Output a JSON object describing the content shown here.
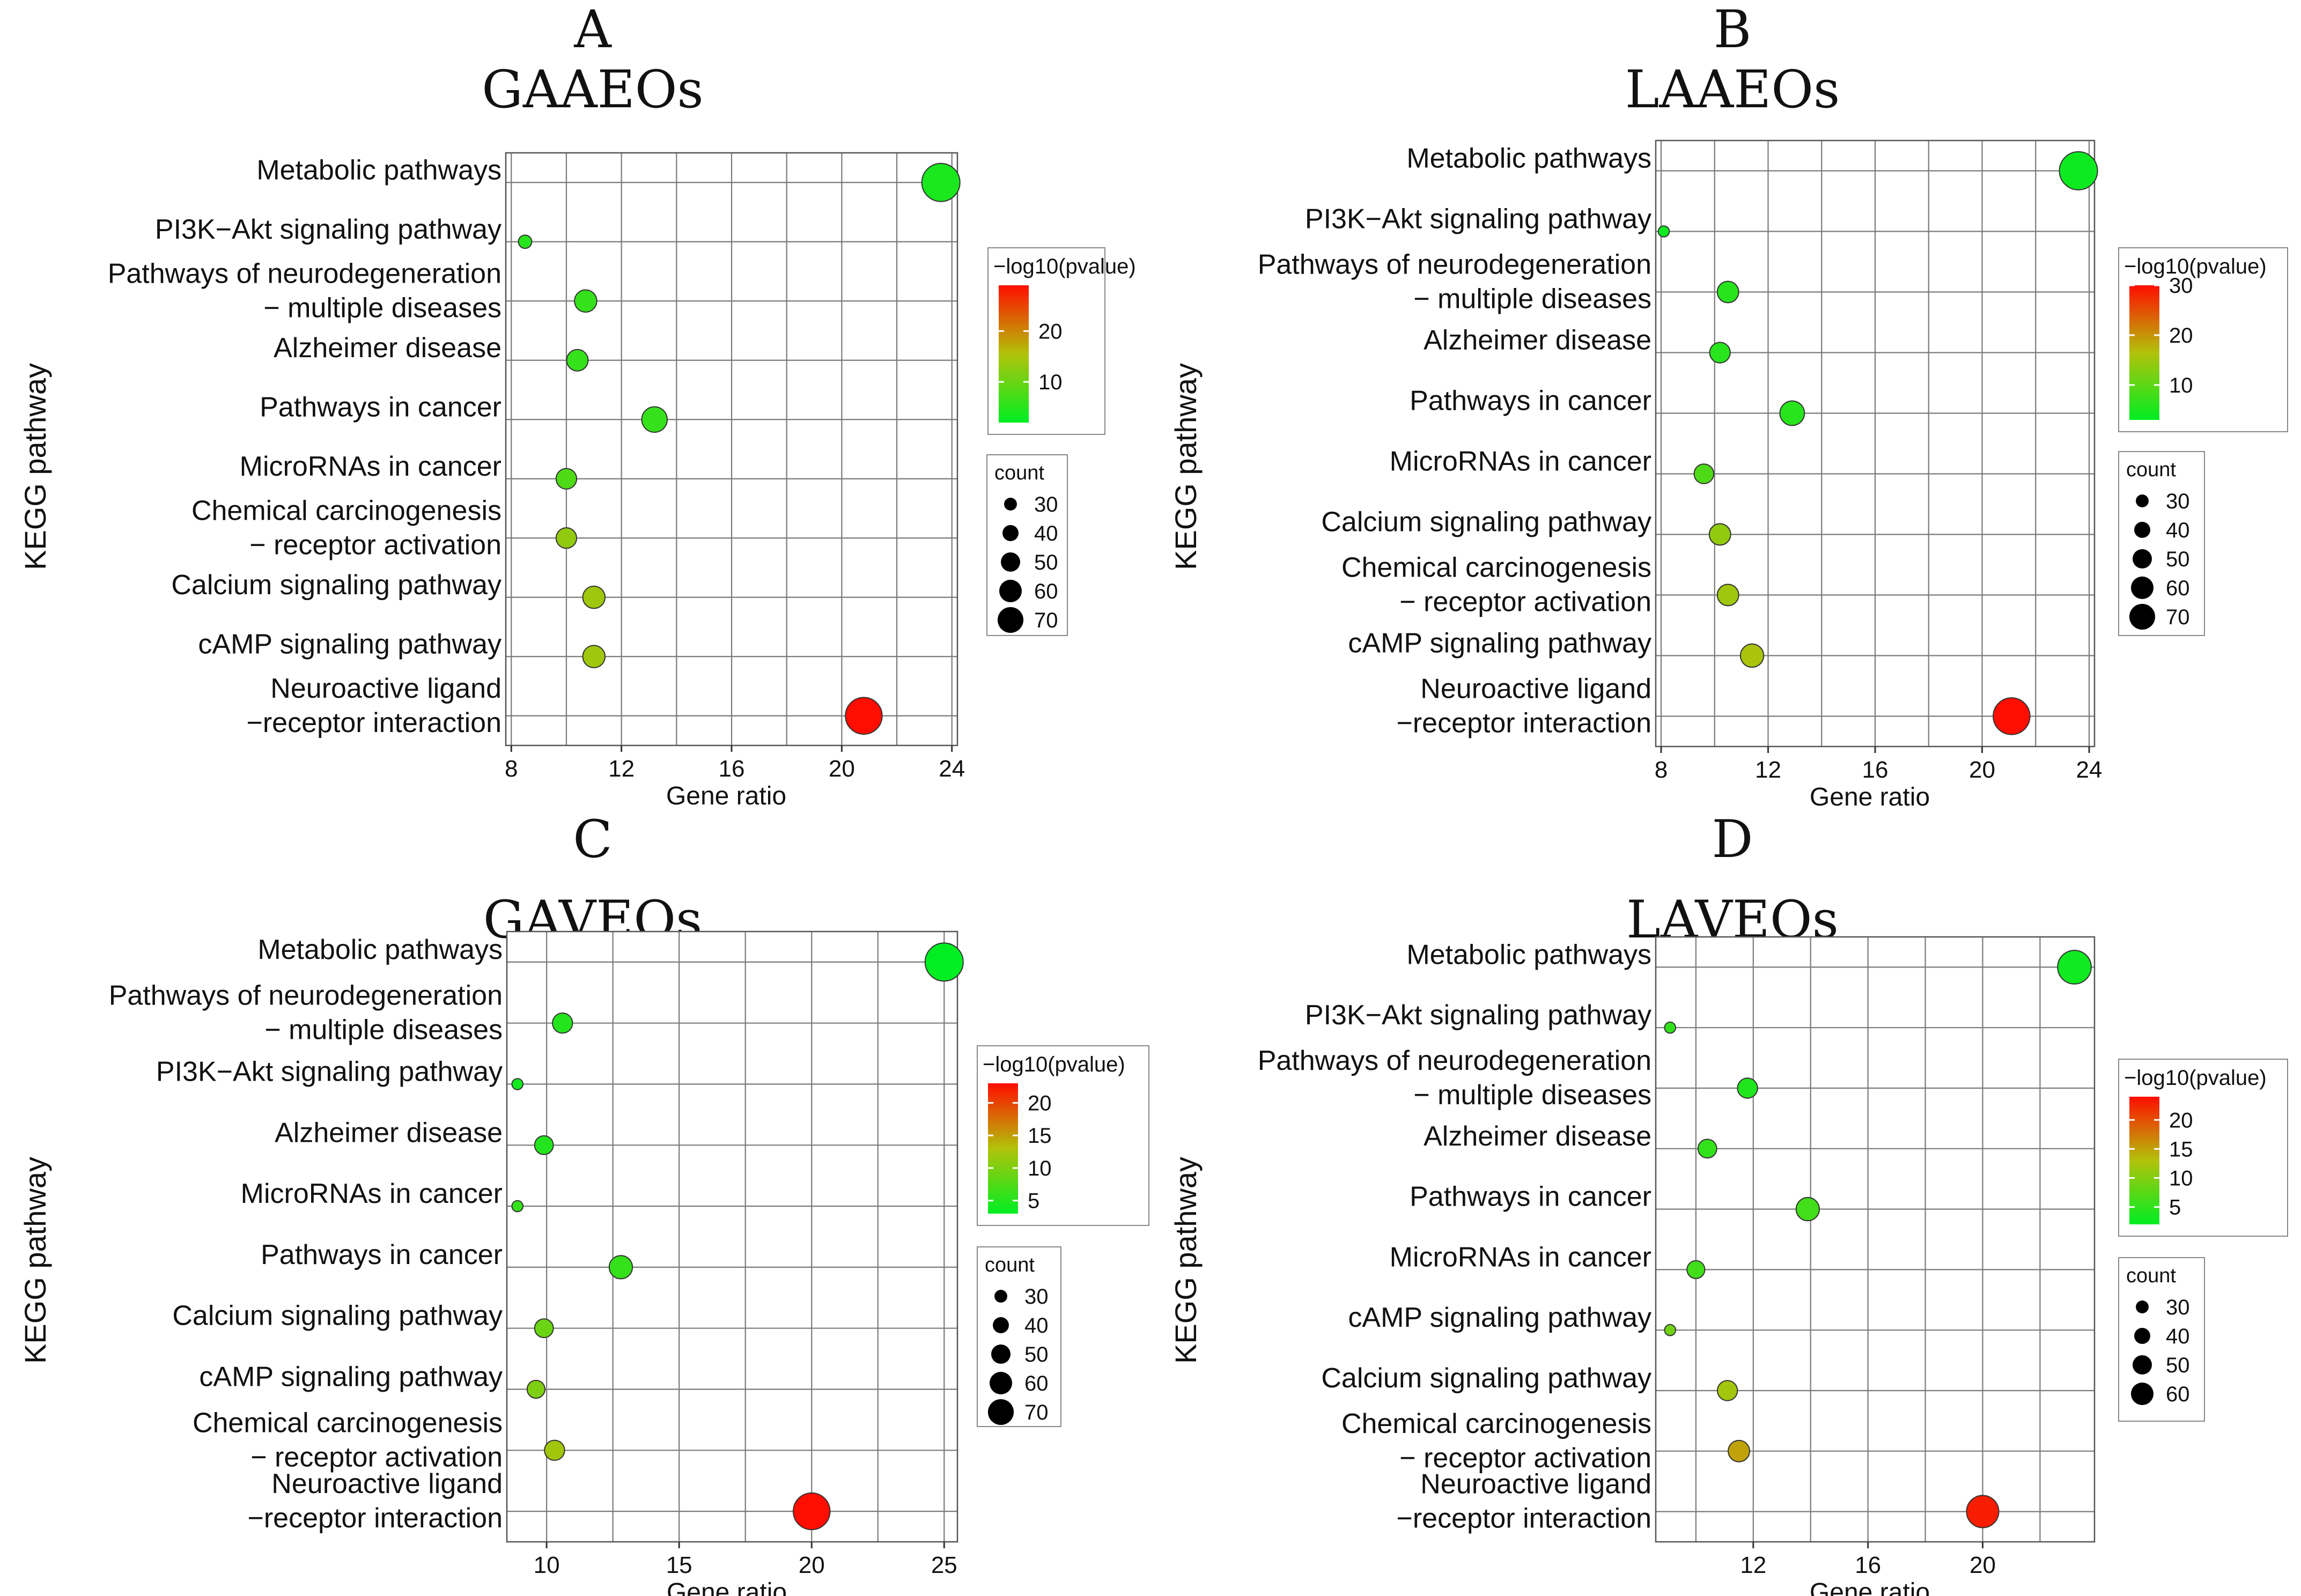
{
  "chart_data": [
    {
      "type": "scatter",
      "panel_label": "A",
      "title": "GAAEOs",
      "xlabel": "Gene ratio",
      "ylabel": "KEGG pathway",
      "xlim": [
        7.8,
        24.2
      ],
      "xticks": [
        "8",
        "12",
        "16",
        "20",
        "24"
      ],
      "xtick_values": [
        8,
        12,
        16,
        20,
        24
      ],
      "categories": [
        [
          "Metabolic pathways"
        ],
        [
          "PI3K−Akt signaling pathway"
        ],
        [
          "Pathways of neurodegeneration",
          "− multiple diseases"
        ],
        [
          "Alzheimer disease"
        ],
        [
          "Pathways in cancer"
        ],
        [
          "MicroRNAs in cancer"
        ],
        [
          "Chemical carcinogenesis",
          "− receptor activation"
        ],
        [
          "Calcium signaling pathway"
        ],
        [
          "cAMP signaling pathway"
        ],
        [
          "Neuroactive ligand",
          "−receptor interaction"
        ]
      ],
      "gene_ratio": [
        23.6,
        8.5,
        10.7,
        10.4,
        13.2,
        10.0,
        10.0,
        11.0,
        11.0,
        20.8
      ],
      "count": [
        75,
        20,
        40,
        38,
        47,
        36,
        36,
        40,
        40,
        72
      ],
      "neg_log10_pvalue": [
        4,
        5,
        6,
        6,
        6,
        8,
        13,
        14,
        14,
        29
      ],
      "color_legend": {
        "title": "−log10(pvalue)",
        "range": [
          2,
          29
        ],
        "ticks": [
          "10",
          "20"
        ],
        "tick_values": [
          10,
          20
        ]
      },
      "size_legend": {
        "title": "count",
        "labels": [
          "30",
          "40",
          "50",
          "60",
          "70"
        ],
        "values": [
          30,
          40,
          50,
          60,
          70
        ]
      }
    },
    {
      "type": "scatter",
      "panel_label": "B",
      "title": "LAAEOs",
      "xlabel": "Gene ratio",
      "ylabel": "KEGG pathway",
      "xlim": [
        7.8,
        24.2
      ],
      "xticks": [
        "8",
        "12",
        "16",
        "20",
        "24"
      ],
      "xtick_values": [
        8,
        12,
        16,
        20,
        24
      ],
      "categories": [
        [
          "Metabolic pathways"
        ],
        [
          "PI3K−Akt signaling pathway"
        ],
        [
          "Pathways of neurodegeneration",
          "− multiple diseases"
        ],
        [
          "Alzheimer disease"
        ],
        [
          "Pathways in cancer"
        ],
        [
          "MicroRNAs in cancer"
        ],
        [
          "Calcium signaling pathway"
        ],
        [
          "Chemical carcinogenesis",
          "− receptor activation"
        ],
        [
          "cAMP signaling pathway"
        ],
        [
          "Neuroactive ligand",
          "−receptor interaction"
        ]
      ],
      "gene_ratio": [
        23.6,
        8.1,
        10.5,
        10.2,
        12.9,
        9.6,
        10.2,
        10.5,
        11.4,
        21.1
      ],
      "count": [
        75,
        15,
        38,
        36,
        45,
        34,
        38,
        38,
        42,
        72
      ],
      "neg_log10_pvalue": [
        4,
        4,
        6,
        6,
        6,
        9,
        14,
        15,
        16,
        30
      ],
      "color_legend": {
        "title": "−log10(pvalue)",
        "range": [
          3,
          30
        ],
        "ticks": [
          "10",
          "20",
          "30"
        ],
        "tick_values": [
          10,
          20,
          30
        ]
      },
      "size_legend": {
        "title": "count",
        "labels": [
          "30",
          "40",
          "50",
          "60",
          "70"
        ],
        "values": [
          30,
          40,
          50,
          60,
          70
        ]
      }
    },
    {
      "type": "scatter",
      "panel_label": "C",
      "title": "GAVEOs",
      "xlabel": "Gene ratio",
      "ylabel": "KEGG pathway",
      "xlim": [
        8.5,
        25.5
      ],
      "xticks": [
        "10",
        "15",
        "20",
        "25"
      ],
      "xtick_values": [
        10,
        15,
        20,
        25
      ],
      "categories": [
        [
          "Metabolic pathways"
        ],
        [
          "Pathways of neurodegeneration",
          "− multiple diseases"
        ],
        [
          "PI3K−Akt signaling pathway"
        ],
        [
          "Alzheimer disease"
        ],
        [
          "MicroRNAs in cancer"
        ],
        [
          "Pathways in cancer"
        ],
        [
          "Calcium signaling pathway"
        ],
        [
          "cAMP signaling pathway"
        ],
        [
          "Chemical carcinogenesis",
          "− receptor activation"
        ],
        [
          "Neuroactive ligand",
          "−receptor interaction"
        ]
      ],
      "gene_ratio": [
        25.0,
        10.6,
        8.9,
        9.9,
        8.9,
        12.8,
        9.9,
        9.6,
        10.3,
        20.0
      ],
      "count": [
        75,
        35,
        15,
        32,
        15,
        42,
        32,
        30,
        35,
        72
      ],
      "neg_log10_pvalue": [
        3,
        5,
        4,
        5,
        6,
        6,
        9,
        10,
        12,
        23
      ],
      "color_legend": {
        "title": "−log10(pvalue)",
        "range": [
          3,
          23
        ],
        "ticks": [
          "5",
          "10",
          "15",
          "20"
        ],
        "tick_values": [
          5,
          10,
          15,
          20
        ]
      },
      "size_legend": {
        "title": "count",
        "labels": [
          "30",
          "40",
          "50",
          "60",
          "70"
        ],
        "values": [
          30,
          40,
          50,
          60,
          70
        ]
      }
    },
    {
      "type": "scatter",
      "panel_label": "D",
      "title": "LAVEOs",
      "xlabel": "Gene ratio",
      "ylabel": "KEGG pathway",
      "xlim": [
        8.6,
        23.9
      ],
      "xticks": [
        "12",
        "16",
        "20"
      ],
      "xtick_values": [
        12,
        16,
        20
      ],
      "categories": [
        [
          "Metabolic pathways"
        ],
        [
          "PI3K−Akt signaling pathway"
        ],
        [
          "Pathways of neurodegeneration",
          "− multiple diseases"
        ],
        [
          "Alzheimer disease"
        ],
        [
          "Pathways in cancer"
        ],
        [
          "MicroRNAs in cancer"
        ],
        [
          "cAMP signaling pathway"
        ],
        [
          "Calcium signaling pathway"
        ],
        [
          "Chemical carcinogenesis",
          "− receptor activation"
        ],
        [
          "Neuroactive ligand",
          "−receptor interaction"
        ]
      ],
      "gene_ratio": [
        23.2,
        9.1,
        11.8,
        10.4,
        13.9,
        10.0,
        9.1,
        11.1,
        11.5,
        20.0
      ],
      "count": [
        65,
        15,
        35,
        32,
        42,
        30,
        15,
        35,
        38,
        62
      ],
      "neg_log10_pvalue": [
        3,
        5,
        4,
        5,
        6,
        6,
        9,
        12,
        15,
        23
      ],
      "color_legend": {
        "title": "−log10(pvalue)",
        "range": [
          2,
          24
        ],
        "ticks": [
          "5",
          "10",
          "15",
          "20"
        ],
        "tick_values": [
          5,
          10,
          15,
          20
        ]
      },
      "size_legend": {
        "title": "count",
        "labels": [
          "30",
          "40",
          "50",
          "60"
        ],
        "values": [
          30,
          40,
          50,
          60
        ]
      }
    }
  ],
  "colors": {
    "low": "#00ee22",
    "mid": "#b2c20a",
    "high": "#ff0d00",
    "point_stroke": "#333333"
  }
}
